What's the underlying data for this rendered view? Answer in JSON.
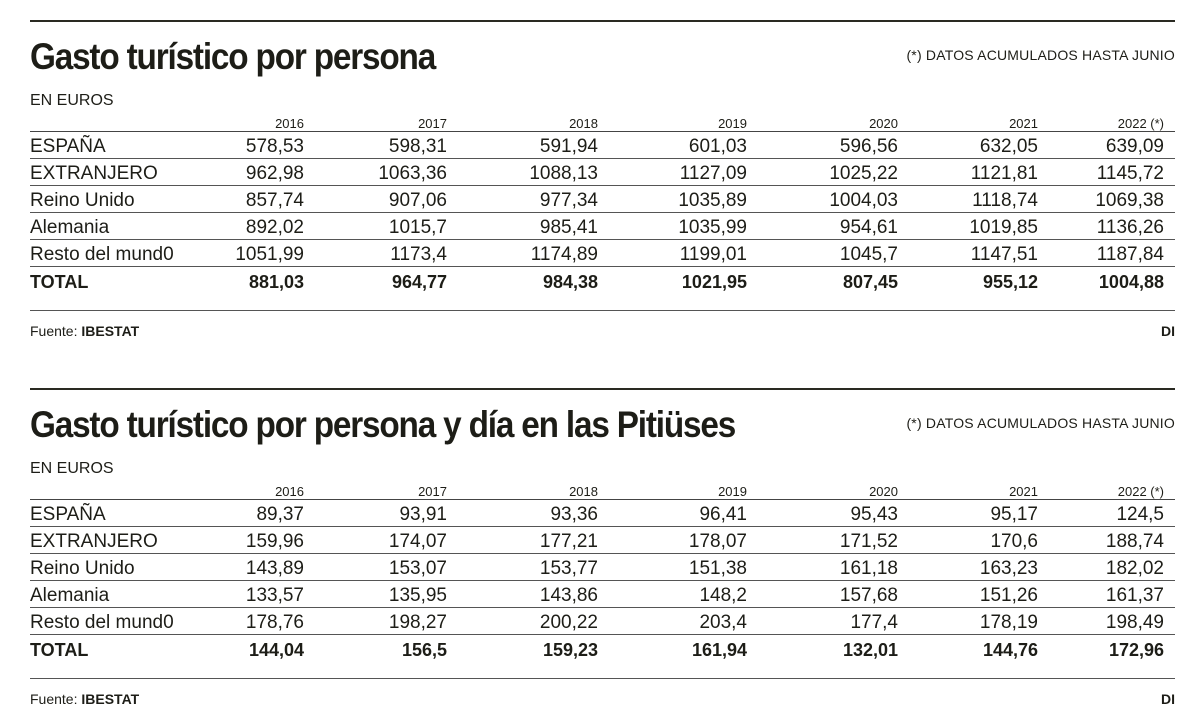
{
  "tables": [
    {
      "title": "Gasto turístico por persona",
      "note": "(*) DATOS ACUMULADOS HASTA JUNIO",
      "unit": "EN EUROS",
      "source_label": "Fuente:",
      "source": "IBESTAT",
      "logo": "DI",
      "columns": [
        "2016",
        "2017",
        "2018",
        "2019",
        "2020",
        "2021",
        "2022 (*)"
      ],
      "rows": [
        {
          "label": "ESPAÑA",
          "values": [
            "578,53",
            "598,31",
            "591,94",
            "601,03",
            "596,56",
            "632,05",
            "639,09"
          ]
        },
        {
          "label": "EXTRANJERO",
          "values": [
            "962,98",
            "1063,36",
            "1088,13",
            "1127,09",
            "1025,22",
            "1121,81",
            "1145,72"
          ]
        },
        {
          "label": "Reino Unido",
          "values": [
            "857,74",
            "907,06",
            "977,34",
            "1035,89",
            "1004,03",
            "1118,74",
            "1069,38"
          ]
        },
        {
          "label": "Alemania",
          "values": [
            "892,02",
            "1015,7",
            "985,41",
            "1035,99",
            "954,61",
            "1019,85",
            "1136,26"
          ]
        },
        {
          "label": "Resto del mund0",
          "values": [
            "1051,99",
            "1173,4",
            "1174,89",
            "1199,01",
            "1045,7",
            "1147,51",
            "1187,84"
          ]
        },
        {
          "label": "TOTAL",
          "values": [
            "881,03",
            "964,77",
            "984,38",
            "1021,95",
            "807,45",
            "955,12",
            "1004,88"
          ]
        }
      ]
    },
    {
      "title": "Gasto turístico por persona y día en las Pitiüses",
      "note": "(*) DATOS ACUMULADOS HASTA JUNIO",
      "unit": "EN EUROS",
      "source_label": "Fuente:",
      "source": "IBESTAT",
      "logo": "DI",
      "columns": [
        "2016",
        "2017",
        "2018",
        "2019",
        "2020",
        "2021",
        "2022 (*)"
      ],
      "rows": [
        {
          "label": "ESPAÑA",
          "values": [
            "89,37",
            "93,91",
            "93,36",
            "96,41",
            "95,43",
            "95,17",
            "124,5"
          ]
        },
        {
          "label": "EXTRANJERO",
          "values": [
            "159,96",
            "174,07",
            "177,21",
            "178,07",
            "171,52",
            "170,6",
            "188,74"
          ]
        },
        {
          "label": "Reino Unido",
          "values": [
            "143,89",
            "153,07",
            "153,77",
            "151,38",
            "161,18",
            "163,23",
            "182,02"
          ]
        },
        {
          "label": "Alemania",
          "values": [
            "133,57",
            "135,95",
            "143,86",
            "148,2",
            "157,68",
            "151,26",
            "161,37"
          ]
        },
        {
          "label": "Resto del mund0",
          "values": [
            "178,76",
            "198,27",
            "200,22",
            "203,4",
            "177,4",
            "178,19",
            "198,49"
          ]
        },
        {
          "label": "TOTAL",
          "values": [
            "144,04",
            "156,5",
            "159,23",
            "161,94",
            "132,01",
            "144,76",
            "172,96"
          ]
        }
      ]
    }
  ],
  "chart_data": [
    {
      "type": "table",
      "title": "Gasto turístico por persona",
      "unit": "EN EUROS",
      "categories": [
        "2016",
        "2017",
        "2018",
        "2019",
        "2020",
        "2021",
        "2022 (*)"
      ],
      "series": [
        {
          "name": "ESPAÑA",
          "values": [
            578.53,
            598.31,
            591.94,
            601.03,
            596.56,
            632.05,
            639.09
          ]
        },
        {
          "name": "EXTRANJERO",
          "values": [
            962.98,
            1063.36,
            1088.13,
            1127.09,
            1025.22,
            1121.81,
            1145.72
          ]
        },
        {
          "name": "Reino Unido",
          "values": [
            857.74,
            907.06,
            977.34,
            1035.89,
            1004.03,
            1118.74,
            1069.38
          ]
        },
        {
          "name": "Alemania",
          "values": [
            892.02,
            1015.7,
            985.41,
            1035.99,
            954.61,
            1019.85,
            1136.26
          ]
        },
        {
          "name": "Resto del mund0",
          "values": [
            1051.99,
            1173.4,
            1174.89,
            1199.01,
            1045.7,
            1147.51,
            1187.84
          ]
        },
        {
          "name": "TOTAL",
          "values": [
            881.03,
            964.77,
            984.38,
            1021.95,
            807.45,
            955.12,
            1004.88
          ]
        }
      ]
    },
    {
      "type": "table",
      "title": "Gasto turístico por persona y día en las Pitiüses",
      "unit": "EN EUROS",
      "categories": [
        "2016",
        "2017",
        "2018",
        "2019",
        "2020",
        "2021",
        "2022 (*)"
      ],
      "series": [
        {
          "name": "ESPAÑA",
          "values": [
            89.37,
            93.91,
            93.36,
            96.41,
            95.43,
            95.17,
            124.5
          ]
        },
        {
          "name": "EXTRANJERO",
          "values": [
            159.96,
            174.07,
            177.21,
            178.07,
            171.52,
            170.6,
            188.74
          ]
        },
        {
          "name": "Reino Unido",
          "values": [
            143.89,
            153.07,
            153.77,
            151.38,
            161.18,
            163.23,
            182.02
          ]
        },
        {
          "name": "Alemania",
          "values": [
            133.57,
            135.95,
            143.86,
            148.2,
            157.68,
            151.26,
            161.37
          ]
        },
        {
          "name": "Resto del mund0",
          "values": [
            178.76,
            198.27,
            200.22,
            203.4,
            177.4,
            178.19,
            198.49
          ]
        },
        {
          "name": "TOTAL",
          "values": [
            144.04,
            156.5,
            159.23,
            161.94,
            132.01,
            144.76,
            172.96
          ]
        }
      ]
    }
  ]
}
